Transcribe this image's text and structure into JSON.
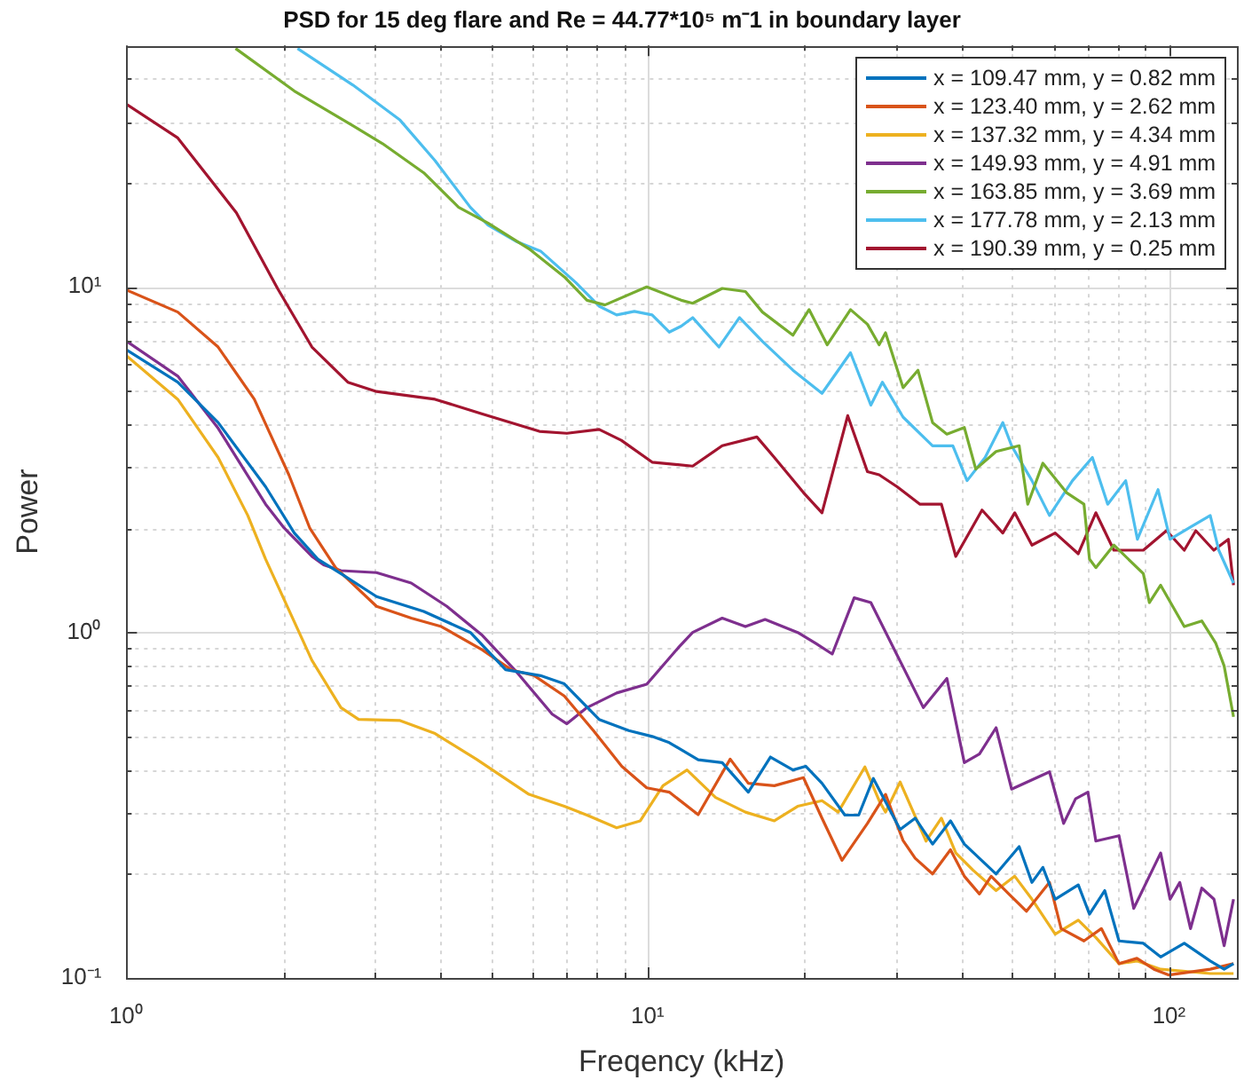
{
  "chart_data": {
    "type": "line",
    "title": "PSD for 15 deg flare and Re = 44.77*10⁵ m⁻1 in boundary layer",
    "xlabel": "Freqency (kHz)",
    "ylabel": "Power",
    "log": "xy",
    "grid": true,
    "legend": "top right",
    "marker": "none",
    "line_style": "solid",
    "xlim": [
      1,
      135
    ],
    "ylim": [
      0.1,
      50
    ],
    "xticks": [
      {
        "value": 1,
        "label": "10⁰"
      },
      {
        "value": 2,
        "label": null
      },
      {
        "value": 3,
        "label": null
      },
      {
        "value": 4,
        "label": null
      },
      {
        "value": 5,
        "label": null
      },
      {
        "value": 6,
        "label": null
      },
      {
        "value": 7,
        "label": null
      },
      {
        "value": 8,
        "label": null
      },
      {
        "value": 9,
        "label": null
      },
      {
        "value": 10,
        "label": "10¹"
      },
      {
        "value": 20,
        "label": null
      },
      {
        "value": 30,
        "label": null
      },
      {
        "value": 40,
        "label": null
      },
      {
        "value": 50,
        "label": null
      },
      {
        "value": 60,
        "label": null
      },
      {
        "value": 70,
        "label": null
      },
      {
        "value": 80,
        "label": null
      },
      {
        "value": 90,
        "label": null
      },
      {
        "value": 100,
        "label": "10²"
      }
    ],
    "yticks": [
      {
        "value": 0.1,
        "label": "10⁻¹"
      },
      {
        "value": 0.2,
        "label": null
      },
      {
        "value": 0.3,
        "label": null
      },
      {
        "value": 0.4,
        "label": null
      },
      {
        "value": 0.5,
        "label": null
      },
      {
        "value": 0.6,
        "label": null
      },
      {
        "value": 0.7,
        "label": null
      },
      {
        "value": 0.8,
        "label": null
      },
      {
        "value": 0.9,
        "label": null
      },
      {
        "value": 1,
        "label": "10⁰"
      },
      {
        "value": 2,
        "label": null
      },
      {
        "value": 3,
        "label": null
      },
      {
        "value": 4,
        "label": null
      },
      {
        "value": 5,
        "label": null
      },
      {
        "value": 6,
        "label": null
      },
      {
        "value": 7,
        "label": null
      },
      {
        "value": 8,
        "label": null
      },
      {
        "value": 9,
        "label": null
      },
      {
        "value": 10,
        "label": "10¹"
      },
      {
        "value": 20,
        "label": null
      },
      {
        "value": 30,
        "label": null
      },
      {
        "value": 40,
        "label": null
      }
    ],
    "series": [
      {
        "name": "x = 109.47 mm, y = 0.82 mm",
        "color": "#0072bd",
        "x": [
          1,
          1.255,
          1.5,
          1.85,
          2.1,
          2.33,
          2.58,
          3.02,
          3.72,
          4.57,
          5.34,
          6.23,
          6.92,
          8.07,
          9.2,
          10.2,
          11.0,
          12.5,
          13.9,
          15.6,
          17.2,
          19.0,
          20.1,
          21.6,
          23.9,
          25.4,
          27.1,
          30.5,
          32.6,
          35.2,
          38.1,
          40.5,
          46.6,
          51.6,
          54.6,
          57.3,
          60.5,
          67.0,
          70.4,
          75.3,
          80.2,
          89.3,
          96.4,
          107,
          120,
          127.6,
          133
        ],
        "values": [
          6.58,
          5.3,
          4.05,
          2.64,
          1.94,
          1.63,
          1.48,
          1.27,
          1.15,
          1.0,
          0.78,
          0.75,
          0.71,
          0.56,
          0.52,
          0.5,
          0.48,
          0.428,
          0.42,
          0.345,
          0.436,
          0.4,
          0.41,
          0.366,
          0.296,
          0.296,
          0.378,
          0.269,
          0.29,
          0.244,
          0.285,
          0.244,
          0.2,
          0.24,
          0.189,
          0.209,
          0.169,
          0.186,
          0.153,
          0.179,
          0.128,
          0.126,
          0.115,
          0.126,
          0.112,
          0.106,
          0.11
        ]
      },
      {
        "name": "x = 123.40 mm, y = 2.62 mm",
        "color": "#d95319",
        "x": [
          1,
          1.255,
          1.5,
          1.76,
          2.05,
          2.25,
          2.52,
          3.02,
          3.52,
          4.02,
          4.82,
          5.47,
          6.06,
          6.92,
          7.87,
          8.92,
          9.96,
          11.0,
          12.5,
          14.4,
          15.6,
          17.5,
          19.9,
          21.6,
          23.6,
          26.4,
          28.6,
          30.9,
          32.6,
          35.2,
          38.1,
          40.5,
          43.3,
          45.6,
          49.3,
          53.3,
          59.0,
          62.1,
          68.7,
          74.2,
          80.2,
          86.8,
          93.6,
          100,
          120,
          133
        ],
        "values": [
          9.8,
          8.46,
          6.7,
          4.73,
          2.86,
          2.0,
          1.54,
          1.19,
          1.1,
          1.04,
          0.89,
          0.78,
          0.75,
          0.655,
          0.52,
          0.41,
          0.355,
          0.345,
          0.297,
          0.43,
          0.366,
          0.36,
          0.38,
          0.29,
          0.219,
          0.28,
          0.34,
          0.25,
          0.222,
          0.2,
          0.235,
          0.197,
          0.175,
          0.197,
          0.175,
          0.156,
          0.189,
          0.139,
          0.128,
          0.139,
          0.11,
          0.114,
          0.106,
          0.102,
          0.106,
          0.11
        ]
      },
      {
        "name": "x = 137.32 mm, y = 4.34 mm",
        "color": "#edb120",
        "x": [
          1,
          1.255,
          1.5,
          1.71,
          1.85,
          1.95,
          2.27,
          2.58,
          2.79,
          3.35,
          3.91,
          4.69,
          5.92,
          6.92,
          7.65,
          8.72,
          9.68,
          10.7,
          11.9,
          13.5,
          15.4,
          17.5,
          19.4,
          21.6,
          23.2,
          26.1,
          27.8,
          28.6,
          30.5,
          34.2,
          36.6,
          39.0,
          42.1,
          46.6,
          50.6,
          54.6,
          60.5,
          67.0,
          72.4,
          80.2,
          86.8,
          96.4,
          120,
          133
        ],
        "values": [
          6.33,
          4.73,
          3.21,
          2.18,
          1.63,
          1.37,
          0.83,
          0.606,
          0.56,
          0.556,
          0.51,
          0.43,
          0.34,
          0.314,
          0.296,
          0.272,
          0.285,
          0.36,
          0.4,
          0.333,
          0.302,
          0.285,
          0.314,
          0.326,
          0.302,
          0.408,
          0.326,
          0.302,
          0.369,
          0.249,
          0.29,
          0.23,
          0.205,
          0.179,
          0.197,
          0.169,
          0.134,
          0.147,
          0.131,
          0.11,
          0.112,
          0.106,
          0.103,
          0.103
        ]
      },
      {
        "name": "x = 149.93 mm, y = 4.91 mm",
        "color": "#7e2f8e",
        "x": [
          1,
          1.255,
          1.5,
          1.85,
          2.0,
          2.27,
          2.39,
          2.58,
          3.02,
          3.52,
          4.12,
          4.82,
          5.62,
          6.56,
          7.0,
          7.65,
          8.72,
          9.96,
          11.5,
          12.2,
          13.9,
          15.4,
          16.8,
          19.4,
          21.0,
          22.6,
          24.9,
          26.8,
          30.1,
          33.8,
          37.5,
          40.5,
          43.3,
          46.6,
          49.9,
          59.0,
          62.8,
          66.2,
          69.9,
          72.4,
          80.2,
          85.6,
          96.4,
          100.5,
          104.9,
          110,
          115.6,
          122,
          127.6,
          133
        ],
        "values": [
          6.97,
          5.52,
          3.9,
          2.35,
          2.02,
          1.66,
          1.57,
          1.51,
          1.49,
          1.39,
          1.19,
          0.98,
          0.765,
          0.58,
          0.544,
          0.606,
          0.668,
          0.708,
          0.91,
          1.0,
          1.1,
          1.04,
          1.09,
          1.0,
          0.93,
          0.866,
          1.26,
          1.22,
          0.86,
          0.606,
          0.736,
          0.42,
          0.445,
          0.53,
          0.352,
          0.395,
          0.28,
          0.33,
          0.345,
          0.249,
          0.258,
          0.159,
          0.23,
          0.169,
          0.189,
          0.139,
          0.182,
          0.169,
          0.124,
          0.169
        ]
      },
      {
        "name": "x = 163.85 mm, y = 3.69 mm",
        "color": "#77ac30",
        "x": [
          1.62,
          2.1,
          2.72,
          3.1,
          3.72,
          4.34,
          4.94,
          5.92,
          6.92,
          7.65,
          8.28,
          9.96,
          11.6,
          12.2,
          13.9,
          15.4,
          16.6,
          19.0,
          20.4,
          22.1,
          24.5,
          26.4,
          27.8,
          28.6,
          30.9,
          33.0,
          35.2,
          37.5,
          40.5,
          42.6,
          46.6,
          51.6,
          53.6,
          57.3,
          63.6,
          68.7,
          70.4,
          72.4,
          78.4,
          89.3,
          91.7,
          96.4,
          107,
          115.6,
          123,
          127.6,
          133
        ],
        "values": [
          49,
          36.9,
          29.3,
          26.0,
          21.4,
          17.0,
          15.3,
          12.9,
          10.7,
          9.15,
          8.87,
          10.0,
          9.15,
          8.97,
          9.9,
          9.7,
          8.46,
          7.25,
          8.6,
          6.8,
          8.6,
          7.8,
          6.8,
          7.37,
          5.11,
          5.74,
          4.05,
          3.75,
          3.92,
          2.97,
          3.34,
          3.47,
          2.35,
          3.09,
          2.54,
          2.35,
          1.63,
          1.54,
          1.79,
          1.48,
          1.22,
          1.37,
          1.04,
          1.08,
          0.93,
          0.8,
          0.57
        ]
      },
      {
        "name": "x = 177.78 mm, y = 2.13 mm",
        "color": "#4dbeee",
        "x": [
          2.13,
          2.72,
          3.35,
          3.91,
          4.57,
          4.94,
          5.62,
          6.23,
          7.28,
          8.07,
          8.72,
          9.43,
          10.2,
          11.0,
          11.6,
          12.2,
          13.7,
          15.0,
          16.6,
          19.0,
          21.6,
          24.5,
          26.8,
          28.2,
          30.9,
          35.2,
          38.5,
          41.0,
          44.4,
          48.0,
          49.9,
          54.6,
          59.0,
          65.3,
          71.3,
          76.3,
          82.6,
          87.0,
          95.3,
          100.5,
          110,
          120,
          124.6,
          133
        ],
        "values": [
          49,
          38.4,
          30.4,
          23.2,
          17.0,
          15.1,
          13.5,
          12.7,
          10.3,
          8.8,
          8.3,
          8.5,
          8.3,
          7.4,
          7.7,
          8.15,
          6.7,
          8.15,
          6.96,
          5.74,
          4.92,
          6.45,
          4.55,
          5.3,
          4.2,
          3.47,
          3.47,
          2.75,
          3.21,
          4.05,
          3.47,
          2.75,
          2.18,
          2.75,
          3.21,
          2.35,
          2.75,
          1.86,
          2.59,
          1.86,
          2.02,
          2.18,
          1.73,
          1.39
        ]
      },
      {
        "name": "x = 190.39 mm, y = 0.25 mm",
        "color": "#a2142f",
        "x": [
          1,
          1.255,
          1.626,
          1.95,
          2.27,
          2.66,
          3.02,
          3.91,
          4.82,
          6.2,
          7.0,
          8.07,
          8.9,
          10.2,
          12.2,
          13.9,
          16.2,
          17.5,
          19.9,
          21.6,
          24.2,
          26.4,
          27.8,
          30.1,
          33.3,
          36.6,
          39.0,
          43.8,
          48.0,
          50.6,
          54.6,
          60.5,
          67.0,
          72.4,
          78.4,
          89.3,
          98.9,
          107,
          112.6,
          121.9,
          130,
          133
        ],
        "values": [
          33.8,
          27,
          16.4,
          9.9,
          6.7,
          5.3,
          4.98,
          4.73,
          4.29,
          3.82,
          3.77,
          3.87,
          3.6,
          3.11,
          3.03,
          3.47,
          3.68,
          3.21,
          2.54,
          2.22,
          4.24,
          2.92,
          2.86,
          2.64,
          2.35,
          2.35,
          1.66,
          2.26,
          1.94,
          2.22,
          1.79,
          1.94,
          1.69,
          2.22,
          1.73,
          1.73,
          1.97,
          1.73,
          1.97,
          1.73,
          1.86,
          1.37
        ]
      }
    ]
  }
}
